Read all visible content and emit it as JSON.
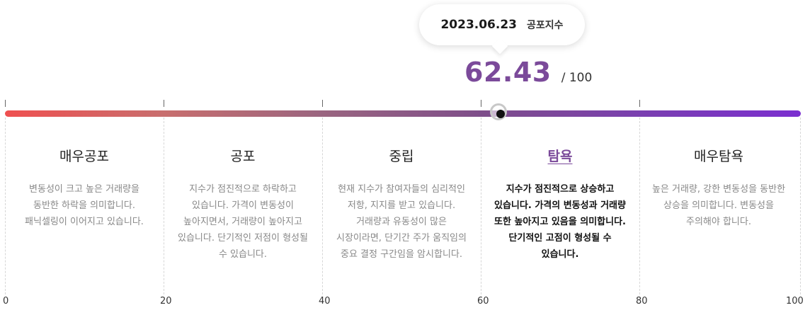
{
  "tooltip": {
    "date": "2023.06.23",
    "label": "공포지수"
  },
  "score": {
    "value": "62.43",
    "max": "/ 100"
  },
  "gauge": {
    "value": 62.43,
    "min": 0,
    "max": 100
  },
  "zones": [
    {
      "title": "매우공포",
      "desc": "변동성이 크고 높은 거래량을 동반한 하락을 의미합니다. 패닉셀링이 이어지고 있습니다."
    },
    {
      "title": "공포",
      "desc": "지수가 점진적으로 하락하고 있습니다. 가격이 변동성이 높아지면서, 거래량이 높아지고 있습니다. 단기적인 저점이 형성될 수 있습니다."
    },
    {
      "title": "중립",
      "desc": "현재 지수가 참여자들의 심리적인 저항, 지지를 받고 있습니다. 거래량과 유동성이 많은 시장이라면, 단기간 주가 움직임의 중요 결정 구간임을 암시합니다."
    },
    {
      "title": "탐욕",
      "desc": "지수가 점진적으로 상승하고 있습니다. 가격의 변동성과 거래량 또한 높아지고 있음을 의미합니다. 단기적인 고점이 형성될 수 있습니다."
    },
    {
      "title": "매우탐욕",
      "desc": "높은 거래량, 강한 변동성을 동반한 상승을 의미합니다. 변동성을 주의해야 합니다."
    }
  ],
  "active_zone": "탐욕",
  "axis": [
    "0",
    "20",
    "40",
    "60",
    "80",
    "100"
  ],
  "colors": {
    "accent": "#7b4a9a",
    "bar_start": "#ef5050",
    "bar_end": "#7b2fd0"
  }
}
